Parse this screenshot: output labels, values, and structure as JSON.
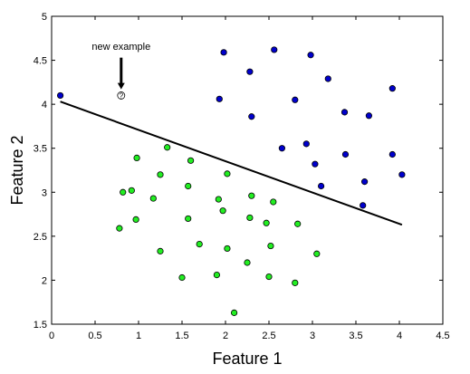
{
  "chart_data": {
    "type": "scatter",
    "xlabel": "Feature 1",
    "ylabel": "Feature 2",
    "xlim": [
      0,
      4.5
    ],
    "ylim": [
      1.5,
      5
    ],
    "x_ticks": [
      "0",
      "0.5",
      "1",
      "1.5",
      "2",
      "2.5",
      "3",
      "3.5",
      "4",
      "4.5"
    ],
    "y_ticks": [
      "1.5",
      "2",
      "2.5",
      "3",
      "3.5",
      "4",
      "4.5",
      "5"
    ],
    "grid": false,
    "legend": "none",
    "series": [
      {
        "color": "#0000cc",
        "marker": "circle",
        "points": [
          [
            0.1,
            4.1
          ],
          [
            1.98,
            4.59
          ],
          [
            2.56,
            4.62
          ],
          [
            2.98,
            4.56
          ],
          [
            2.28,
            4.37
          ],
          [
            3.18,
            4.29
          ],
          [
            3.92,
            4.18
          ],
          [
            1.93,
            4.06
          ],
          [
            2.8,
            4.05
          ],
          [
            3.37,
            3.91
          ],
          [
            2.3,
            3.86
          ],
          [
            3.65,
            3.87
          ],
          [
            2.93,
            3.55
          ],
          [
            2.65,
            3.5
          ],
          [
            3.38,
            3.43
          ],
          [
            3.92,
            3.43
          ],
          [
            3.03,
            3.32
          ],
          [
            4.03,
            3.2
          ],
          [
            3.6,
            3.12
          ],
          [
            3.1,
            3.07
          ],
          [
            3.58,
            2.85
          ]
        ]
      },
      {
        "color": "#22ee22",
        "marker": "circle",
        "points": [
          [
            1.33,
            3.51
          ],
          [
            0.98,
            3.39
          ],
          [
            1.6,
            3.36
          ],
          [
            1.25,
            3.2
          ],
          [
            2.02,
            3.21
          ],
          [
            1.57,
            3.07
          ],
          [
            0.92,
            3.02
          ],
          [
            0.82,
            3.0
          ],
          [
            1.17,
            2.93
          ],
          [
            1.92,
            2.92
          ],
          [
            2.3,
            2.96
          ],
          [
            2.55,
            2.89
          ],
          [
            1.97,
            2.79
          ],
          [
            0.97,
            2.69
          ],
          [
            1.57,
            2.7
          ],
          [
            2.28,
            2.71
          ],
          [
            2.47,
            2.65
          ],
          [
            2.83,
            2.64
          ],
          [
            0.78,
            2.59
          ],
          [
            1.7,
            2.41
          ],
          [
            2.02,
            2.36
          ],
          [
            2.52,
            2.39
          ],
          [
            1.25,
            2.33
          ],
          [
            3.05,
            2.3
          ],
          [
            2.25,
            2.2
          ],
          [
            1.9,
            2.06
          ],
          [
            1.5,
            2.03
          ],
          [
            2.5,
            2.04
          ],
          [
            2.8,
            1.97
          ],
          [
            2.1,
            1.63
          ]
        ]
      }
    ],
    "boundary_line": {
      "x": [
        0.1,
        4.03
      ],
      "y": [
        4.03,
        2.63
      ]
    },
    "new_point": {
      "x": 0.8,
      "y": 4.1,
      "label": "?"
    },
    "annotation": {
      "text": "new example",
      "target": [
        0.8,
        4.1
      ],
      "text_position": [
        0.8,
        4.62
      ],
      "arrow_from": [
        0.8,
        4.53
      ],
      "arrow_to": [
        0.8,
        4.17
      ]
    }
  }
}
